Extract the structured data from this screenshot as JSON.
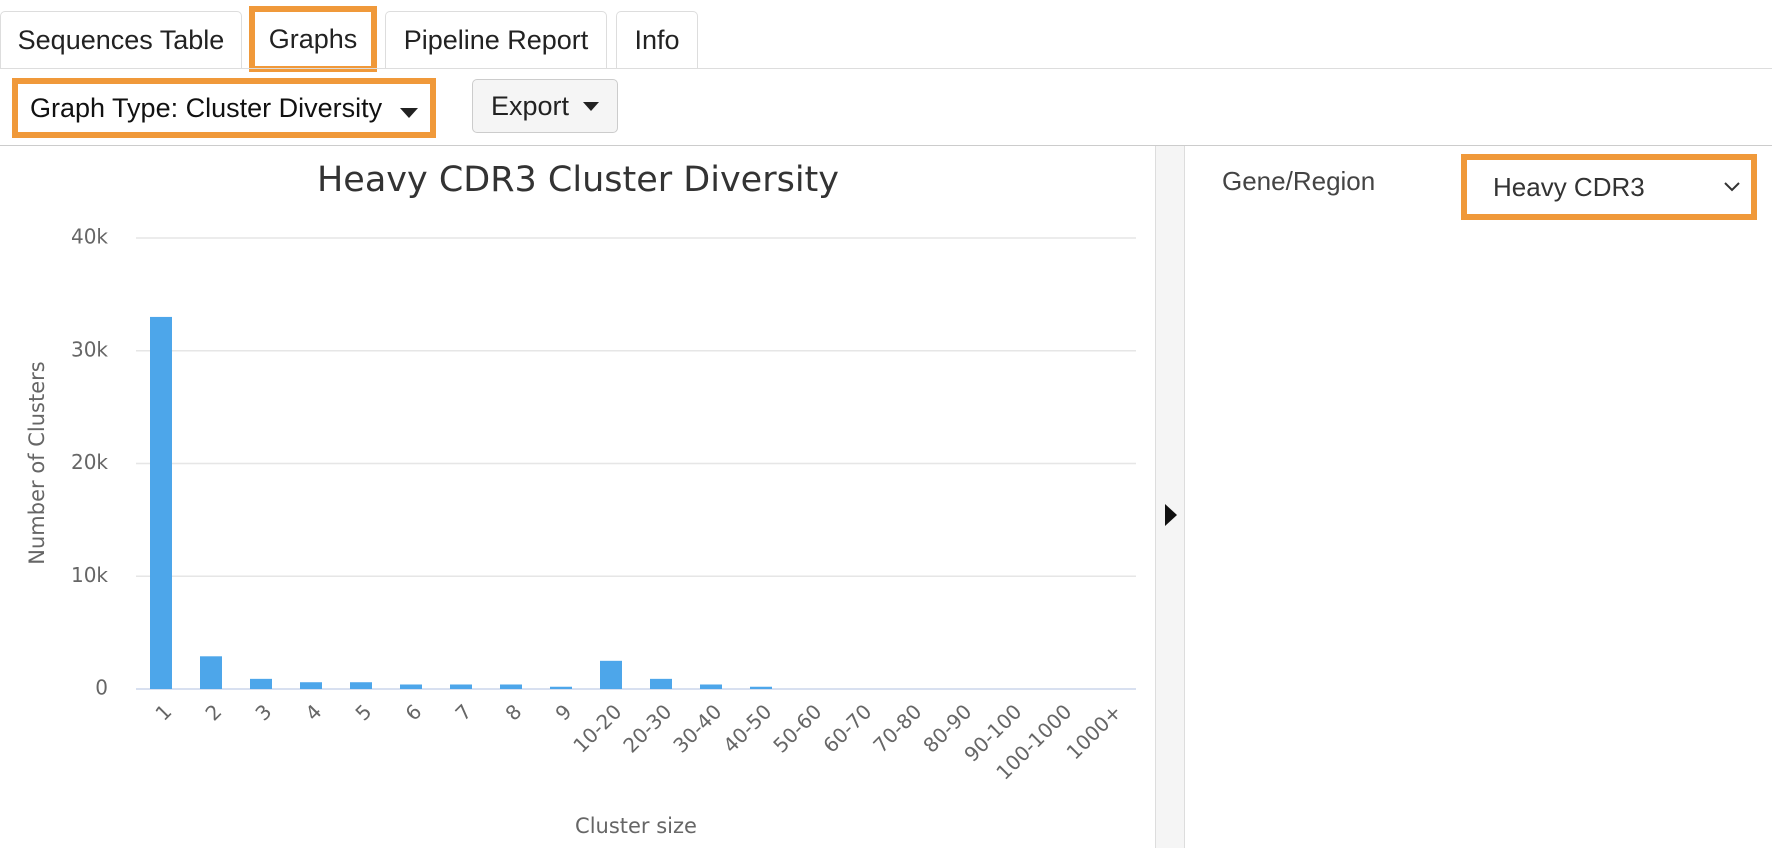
{
  "tabs": [
    "Sequences Table",
    "Graphs",
    "Pipeline Report",
    "Info"
  ],
  "toolbar": {
    "graph_type": "Graph Type: Cluster Diversity",
    "export": "Export"
  },
  "side_panel": {
    "label": "Gene/Region",
    "select": "Heavy CDR3"
  },
  "chart_data": {
    "type": "bar",
    "title": "Heavy CDR3 Cluster Diversity",
    "x_label": "Cluster size",
    "y_label": "Number of Clusters",
    "categories": [
      "1",
      "2",
      "3",
      "4",
      "5",
      "6",
      "7",
      "8",
      "9",
      "10-20",
      "20-30",
      "30-40",
      "40-50",
      "50-60",
      "60-70",
      "70-80",
      "80-90",
      "90-100",
      "100-1000",
      "1000+"
    ],
    "values": [
      33000,
      2900,
      900,
      600,
      600,
      400,
      400,
      400,
      200,
      2500,
      900,
      400,
      200,
      0,
      0,
      0,
      0,
      0,
      0,
      0
    ],
    "color": "#4da6ea",
    "ylim": [
      0,
      40000
    ],
    "yticks": [
      0,
      {
        "value": 10000,
        "label": "10k"
      },
      {
        "value": 20000,
        "label": "20k"
      },
      {
        "value": 30000,
        "label": "30k"
      },
      {
        "value": 40000,
        "label": "40k"
      }
    ],
    "grid": true
  }
}
